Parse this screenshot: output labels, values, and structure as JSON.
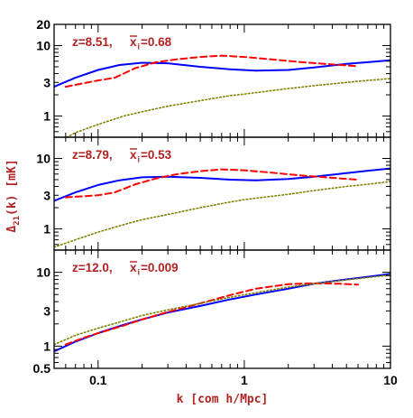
{
  "figure": {
    "xlabel": "k [com h/Mpc]",
    "ylabel": "Δ21(k) [mK]",
    "ylabel_main": "Δ",
    "ylabel_sub": "21",
    "ylabel_rest": "(k) [mK]",
    "colors": {
      "solid": "#0000ff",
      "dashed": "#ff0000",
      "dotted": "#808000",
      "label": "#b22222",
      "axis": "#000000"
    }
  },
  "chart_data": [
    {
      "type": "line",
      "panel": "top",
      "label_text": "z=8.51,",
      "xi_label": "x",
      "xi_sub": "i",
      "xi_value": "=0.68",
      "xscale": "log",
      "yscale": "log",
      "xlim": [
        0.05,
        10
      ],
      "ylim": [
        0.5,
        20
      ],
      "yticks": [
        1,
        3,
        10,
        20
      ],
      "grid": false,
      "series": [
        {
          "style": "solid",
          "x": [
            0.05,
            0.07,
            0.1,
            0.14,
            0.2,
            0.3,
            0.5,
            0.8,
            1.2,
            2,
            3,
            5,
            7,
            10
          ],
          "y": [
            2.6,
            3.5,
            4.5,
            5.3,
            5.7,
            5.6,
            5.0,
            4.6,
            4.4,
            4.5,
            4.9,
            5.5,
            5.8,
            6.2
          ]
        },
        {
          "style": "dashed",
          "x": [
            0.06,
            0.1,
            0.13,
            0.18,
            0.25,
            0.35,
            0.5,
            0.7,
            1,
            1.5,
            2.5,
            4,
            6
          ],
          "y": [
            2.6,
            3.2,
            3.5,
            4.8,
            5.8,
            6.4,
            6.9,
            7.2,
            6.9,
            6.4,
            5.8,
            5.4,
            5.1
          ]
        },
        {
          "style": "dotted",
          "x": [
            0.05,
            0.07,
            0.1,
            0.15,
            0.2,
            0.3,
            0.5,
            0.8,
            1,
            2,
            3,
            5,
            7,
            10
          ],
          "y": [
            0.4,
            0.58,
            0.76,
            1.0,
            1.15,
            1.38,
            1.65,
            1.95,
            2.05,
            2.45,
            2.7,
            3.0,
            3.2,
            3.4
          ]
        }
      ]
    },
    {
      "type": "line",
      "panel": "middle",
      "label_text": "z=8.79,",
      "xi_label": "x",
      "xi_sub": "i",
      "xi_value": "=0.53",
      "xscale": "log",
      "yscale": "log",
      "xlim": [
        0.05,
        10
      ],
      "ylim": [
        0.5,
        20
      ],
      "yticks": [
        1,
        3,
        10
      ],
      "grid": false,
      "series": [
        {
          "style": "solid",
          "x": [
            0.05,
            0.07,
            0.1,
            0.14,
            0.2,
            0.3,
            0.5,
            0.8,
            1.2,
            2,
            3,
            5,
            7,
            10
          ],
          "y": [
            2.5,
            3.3,
            4.2,
            4.9,
            5.4,
            5.5,
            5.3,
            5.0,
            4.9,
            5.1,
            5.5,
            6.2,
            6.7,
            7.2
          ]
        },
        {
          "style": "dashed",
          "x": [
            0.06,
            0.1,
            0.13,
            0.18,
            0.25,
            0.35,
            0.5,
            0.7,
            1,
            1.5,
            2.5,
            4,
            6
          ],
          "y": [
            2.8,
            3.0,
            3.3,
            4.3,
            5.2,
            6.0,
            6.6,
            7.0,
            6.8,
            6.3,
            5.7,
            5.3,
            5.0
          ]
        },
        {
          "style": "dotted",
          "x": [
            0.05,
            0.07,
            0.1,
            0.15,
            0.2,
            0.3,
            0.5,
            0.8,
            1,
            2,
            3,
            5,
            7,
            10
          ],
          "y": [
            0.55,
            0.7,
            0.9,
            1.15,
            1.35,
            1.6,
            2.0,
            2.4,
            2.6,
            3.1,
            3.5,
            4.0,
            4.3,
            4.7
          ]
        }
      ]
    },
    {
      "type": "line",
      "panel": "bottom",
      "label_text": "z=12.0,",
      "xi_label": "x",
      "xi_sub": "i",
      "xi_value": "=0.009",
      "xscale": "log",
      "yscale": "log",
      "xlim": [
        0.05,
        10
      ],
      "ylim": [
        0.5,
        20
      ],
      "yticks": [
        0.5,
        1,
        3,
        10
      ],
      "xticks": [
        0.1,
        1,
        10
      ],
      "xticklabels": [
        "0.1",
        "1",
        "10"
      ],
      "grid": false,
      "series": [
        {
          "style": "solid",
          "x": [
            0.05,
            0.07,
            0.1,
            0.15,
            0.2,
            0.3,
            0.5,
            0.8,
            1.2,
            2,
            3,
            5,
            7,
            10
          ],
          "y": [
            0.85,
            1.15,
            1.5,
            1.95,
            2.3,
            2.85,
            3.5,
            4.3,
            5.0,
            6.0,
            7.0,
            8.0,
            8.7,
            9.5
          ]
        },
        {
          "style": "dashed",
          "x": [
            0.06,
            0.08,
            0.1,
            0.15,
            0.2,
            0.3,
            0.5,
            0.8,
            1.2,
            2,
            3,
            4.5,
            6
          ],
          "y": [
            1.05,
            1.3,
            1.5,
            1.9,
            2.3,
            2.9,
            3.8,
            4.9,
            6.0,
            6.9,
            7.1,
            7.0,
            6.8
          ]
        },
        {
          "style": "dotted",
          "x": [
            0.05,
            0.07,
            0.1,
            0.15,
            0.2,
            0.3,
            0.5,
            0.8,
            1.2,
            2,
            3,
            5,
            7,
            10
          ],
          "y": [
            1.05,
            1.4,
            1.75,
            2.2,
            2.6,
            3.1,
            3.8,
            4.6,
            5.3,
            6.3,
            7.0,
            7.9,
            8.5,
            9.2
          ]
        }
      ]
    }
  ]
}
